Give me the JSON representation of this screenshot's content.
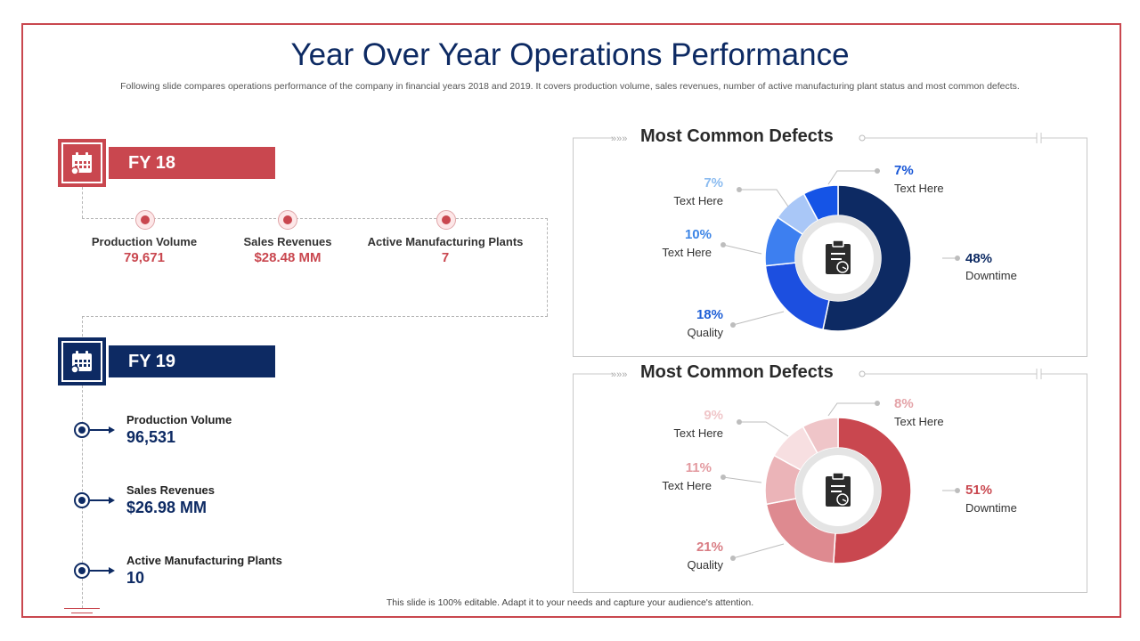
{
  "header": {
    "title": "Year Over Year Operations Performance",
    "subtitle": "Following slide compares operations performance of the company in financial years 2018 and 2019. It covers production volume, sales revenues, number of active manufacturing plant status and most common defects."
  },
  "fy18": {
    "label": "FY 18",
    "icon": "calendar-icon",
    "color": "#c9474f",
    "stats": [
      {
        "label": "Production Volume",
        "value": "79,671"
      },
      {
        "label": "Sales Revenues",
        "value": "$28.48 MM"
      },
      {
        "label": "Active Manufacturing Plants",
        "value": "7"
      }
    ]
  },
  "fy19": {
    "label": "FY 19",
    "icon": "calendar-icon",
    "color": "#0d2a63",
    "stats": [
      {
        "label": "Production Volume",
        "value": "96,531"
      },
      {
        "label": "Sales Revenues",
        "value": "$26.98 MM"
      },
      {
        "label": "Active Manufacturing Plants",
        "value": "10"
      }
    ]
  },
  "chart_data": [
    {
      "type": "pie",
      "title": "Most Common Defects",
      "style": "donut",
      "center_icon": "clipboard-icon",
      "slices": [
        {
          "label": "Downtime",
          "value": 48,
          "display": "48%",
          "color": "#0d2a63",
          "text_color": "#0d2a63"
        },
        {
          "label": "Quality",
          "value": 18,
          "display": "18%",
          "color": "#1c4fe0",
          "text_color": "#1f5fd6"
        },
        {
          "label": "Text Here",
          "value": 10,
          "display": "10%",
          "color": "#3d7ff0",
          "text_color": "#3d85e6"
        },
        {
          "label": "Text Here",
          "value": 7,
          "display": "7%",
          "color": "#a9c7f7",
          "text_color": "#8cbcf0"
        },
        {
          "label": "Text Here",
          "value": 7,
          "display": "7%",
          "color": "#1554e6",
          "text_color": "#1554d6"
        }
      ]
    },
    {
      "type": "pie",
      "title": "Most Common Defects",
      "style": "donut",
      "center_icon": "clipboard-icon",
      "slices": [
        {
          "label": "Downtime",
          "value": 51,
          "display": "51%",
          "color": "#c9474f",
          "text_color": "#c9474f"
        },
        {
          "label": "Quality",
          "value": 21,
          "display": "21%",
          "color": "#de8a90",
          "text_color": "#d97d84"
        },
        {
          "label": "Text Here",
          "value": 11,
          "display": "11%",
          "color": "#ebb4b8",
          "text_color": "#e39aa0"
        },
        {
          "label": "Text Here",
          "value": 9,
          "display": "9%",
          "color": "#f7dfe1",
          "text_color": "#f0c6c9"
        },
        {
          "label": "Text Here",
          "value": 8,
          "display": "8%",
          "color": "#efc5c8",
          "text_color": "#e4a3a8"
        }
      ]
    }
  ],
  "footer": {
    "text": "This slide is 100% editable. Adapt it to your needs and capture your audience's attention."
  }
}
